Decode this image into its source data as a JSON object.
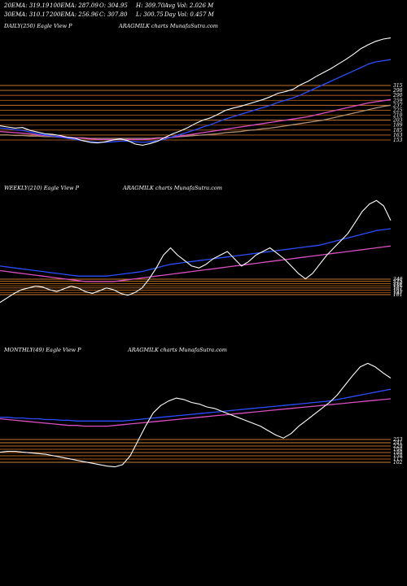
{
  "header": {
    "line1": [
      "20EMA: 319.19",
      "100EMA: 287.09",
      "O: 304.95",
      "H: 309.70",
      "Avg Vol: 2.026  M"
    ],
    "line2": [
      "30EMA: 310.17",
      "200EMA: 256.96",
      "C: 307.80",
      "L: 300.75",
      "Day Vol: 0.457 M"
    ]
  },
  "chart_data": [
    {
      "type": "line",
      "panel": "daily",
      "title_left": "DAILY(250) Eagle  View  P",
      "title_right": "ARAGMILK charts MunafaSutra.com",
      "levels": [
        "315",
        "298",
        "290",
        "259",
        "237",
        "225",
        "210",
        "203",
        "189",
        "185",
        "163",
        "153"
      ],
      "series": [
        {
          "color": "#ffffff",
          "values": [
            320,
            318,
            316,
            317,
            312,
            309,
            306,
            305,
            303,
            300,
            298,
            294,
            291,
            290,
            292,
            295,
            297,
            294,
            288,
            286,
            289,
            293,
            300,
            306,
            311,
            317,
            324,
            330,
            334,
            340,
            347,
            351,
            354,
            358,
            362,
            366,
            371,
            377,
            380,
            384,
            392,
            398,
            406,
            413,
            420,
            428,
            436,
            445,
            455,
            462,
            468,
            472,
            474
          ]
        },
        {
          "color": "#2b4dff",
          "values": [
            316,
            315,
            313,
            312,
            309,
            306,
            304,
            302,
            300,
            298,
            296,
            294,
            292,
            291,
            291,
            292,
            293,
            293,
            292,
            291,
            292,
            294,
            297,
            301,
            305,
            309,
            313,
            318,
            322,
            327,
            332,
            336,
            340,
            344,
            348,
            352,
            356,
            361,
            365,
            369,
            374,
            380,
            386,
            392,
            398,
            404,
            410,
            416,
            422,
            428,
            432,
            434,
            436
          ]
        },
        {
          "color": "#d94fc1",
          "values": [
            310,
            309,
            308,
            307,
            306,
            304,
            303,
            302,
            301,
            300,
            299,
            298,
            297,
            296,
            296,
            296,
            296,
            296,
            296,
            296,
            297,
            298,
            299,
            300,
            302,
            304,
            306,
            308,
            310,
            312,
            314,
            316,
            318,
            320,
            322,
            324,
            326,
            328,
            330,
            332,
            334,
            336,
            339,
            342,
            345,
            348,
            351,
            354,
            357,
            360,
            362,
            364,
            366
          ]
        },
        {
          "color": "#b09070",
          "values": [
            304,
            304,
            303,
            303,
            302,
            302,
            301,
            301,
            300,
            300,
            299,
            299,
            298,
            298,
            298,
            298,
            298,
            298,
            298,
            298,
            298,
            299,
            299,
            300,
            301,
            302,
            303,
            304,
            305,
            306,
            308,
            309,
            310,
            312,
            313,
            315,
            316,
            318,
            320,
            322,
            324,
            326,
            328,
            330,
            333,
            336,
            339,
            342,
            345,
            348,
            351,
            354,
            356
          ]
        }
      ]
    },
    {
      "type": "line",
      "panel": "weekly",
      "title_left": "WEEKLY(210) Eagle  View  P",
      "title_right": "ARAGMILK charts MunafaSutra.com",
      "levels": [
        "240",
        "225",
        "210",
        "191",
        "167",
        "161",
        "147",
        "101"
      ],
      "series": [
        {
          "color": "#ffffff",
          "values": [
            210,
            215,
            220,
            224,
            226,
            228,
            227,
            224,
            222,
            225,
            228,
            226,
            222,
            220,
            223,
            226,
            224,
            220,
            218,
            221,
            226,
            236,
            248,
            262,
            270,
            262,
            256,
            250,
            248,
            252,
            258,
            262,
            266,
            258,
            250,
            255,
            262,
            266,
            270,
            264,
            258,
            250,
            242,
            236,
            242,
            252,
            262,
            270,
            278,
            286,
            298,
            310,
            318,
            322,
            316,
            300
          ]
        },
        {
          "color": "#2b4dff",
          "values": [
            250,
            249,
            248,
            247,
            246,
            245,
            244,
            243,
            242,
            241,
            240,
            239,
            239,
            239,
            239,
            239,
            240,
            241,
            242,
            243,
            244,
            246,
            248,
            250,
            252,
            253,
            254,
            255,
            256,
            257,
            258,
            259,
            260,
            261,
            262,
            263,
            264,
            265,
            266,
            267,
            268,
            269,
            270,
            271,
            272,
            273,
            275,
            277,
            279,
            281,
            283,
            285,
            287,
            289,
            290,
            291
          ]
        },
        {
          "color": "#d94fc1",
          "values": [
            245,
            244,
            243,
            242,
            241,
            240,
            239,
            238,
            237,
            236,
            235,
            234,
            233,
            233,
            233,
            233,
            233,
            234,
            235,
            236,
            237,
            238,
            239,
            240,
            241,
            242,
            243,
            244,
            245,
            246,
            247,
            248,
            249,
            250,
            251,
            252,
            253,
            254,
            255,
            256,
            257,
            258,
            259,
            260,
            261,
            262,
            263,
            264,
            265,
            266,
            267,
            268,
            269,
            270,
            271,
            272
          ]
        }
      ]
    },
    {
      "type": "line",
      "panel": "monthly",
      "title_left": "MONTHLY(49) Eagle  View  P",
      "title_right": "ARAGMILK charts MunafaSutra.com",
      "levels": [
        "253",
        "241",
        "229",
        "194",
        "188",
        "158",
        "117",
        "102"
      ],
      "series": [
        {
          "color": "#ffffff",
          "values": [
            185,
            186,
            186,
            185,
            184,
            183,
            182,
            180,
            178,
            176,
            174,
            172,
            170,
            168,
            166,
            165,
            168,
            180,
            200,
            220,
            238,
            248,
            254,
            258,
            256,
            252,
            250,
            246,
            244,
            240,
            236,
            232,
            228,
            224,
            220,
            214,
            208,
            204,
            210,
            220,
            228,
            236,
            244,
            252,
            262,
            275,
            288,
            300,
            305,
            300,
            292,
            285
          ]
        },
        {
          "color": "#2b4dff",
          "values": [
            232,
            232,
            231,
            231,
            230,
            230,
            229,
            229,
            228,
            228,
            227,
            227,
            227,
            227,
            227,
            227,
            227,
            228,
            229,
            230,
            231,
            232,
            233,
            234,
            235,
            236,
            237,
            238,
            239,
            240,
            241,
            242,
            243,
            244,
            245,
            246,
            247,
            248,
            249,
            250,
            251,
            252,
            253,
            254,
            256,
            258,
            260,
            262,
            264,
            266,
            268,
            270
          ]
        },
        {
          "color": "#d94fc1",
          "values": [
            230,
            229,
            228,
            227,
            226,
            225,
            224,
            223,
            222,
            221,
            221,
            220,
            220,
            220,
            220,
            221,
            222,
            223,
            224,
            225,
            226,
            227,
            228,
            229,
            230,
            231,
            232,
            233,
            234,
            235,
            236,
            237,
            238,
            239,
            240,
            241,
            242,
            243,
            244,
            245,
            246,
            247,
            248,
            249,
            250,
            251,
            252,
            253,
            254,
            255,
            256,
            257
          ]
        }
      ]
    }
  ]
}
